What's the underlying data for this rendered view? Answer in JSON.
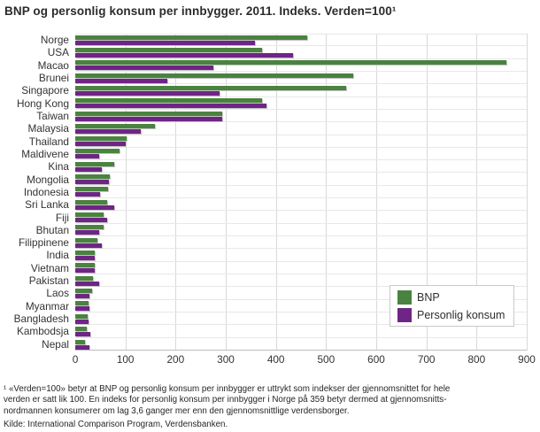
{
  "title": "BNP og personlig konsum per innbygger. 2011. Indeks. Verden=100¹",
  "legend": {
    "bnp": "BNP",
    "konsum": "Personlig konsum"
  },
  "colors": {
    "bnp": "#4A8340",
    "konsum": "#6F2585",
    "gridline": "#d9d9d9",
    "axis": "#bdbdbd"
  },
  "footnote": {
    "line1": "¹ «Verden=100» betyr at BNP og personlig konsum per innbygger er uttrykt som indekser der gjennomsnittet for hele",
    "line2": "verden er satt lik 100. En indeks for personlig konsum per innbygger i Norge på 359 betyr dermed at gjennomsnitts-",
    "line3": "nordmannen konsumerer om lag 3,6 ganger mer enn den gjennomsnittlige verdensborger.",
    "kilde": "Kilde: International Comparison Program, Verdensbanken."
  },
  "chart_data": {
    "type": "bar",
    "orientation": "horizontal",
    "title": "BNP og personlig konsum per innbygger. 2011. Indeks. Verden=100",
    "categories": [
      "Norge",
      "USA",
      "Macao",
      "Brunei",
      "Singapore",
      "Hong Kong",
      "Taiwan",
      "Malaysia",
      "Thailand",
      "Maldivene",
      "Kina",
      "Mongolia",
      "Indonesia",
      "Sri Lanka",
      "Fiji",
      "Bhutan",
      "Filippinene",
      "India",
      "Vietnam",
      "Pakistan",
      "Laos",
      "Myanmar",
      "Bangladesh",
      "Kambodsja",
      "Nepal"
    ],
    "series": [
      {
        "name": "BNP",
        "color": "#4A8340",
        "values": [
          462,
          373,
          859,
          554,
          540,
          373,
          293,
          158,
          103,
          88,
          78,
          68,
          66,
          63,
          57,
          56,
          44,
          38,
          38,
          35,
          34,
          26,
          24,
          23,
          20
        ]
      },
      {
        "name": "Personlig konsum",
        "color": "#6F2585",
        "values": [
          359,
          434,
          275,
          184,
          288,
          381,
          293,
          131,
          101,
          48,
          53,
          67,
          50,
          77,
          64,
          48,
          53,
          38,
          38,
          48,
          29,
          29,
          27,
          30,
          29
        ]
      }
    ],
    "xlim": [
      0,
      900
    ],
    "xticks": [
      0,
      100,
      200,
      300,
      400,
      500,
      600,
      700,
      800,
      900
    ],
    "grid": "vertical",
    "legend_position": "inside-right"
  }
}
